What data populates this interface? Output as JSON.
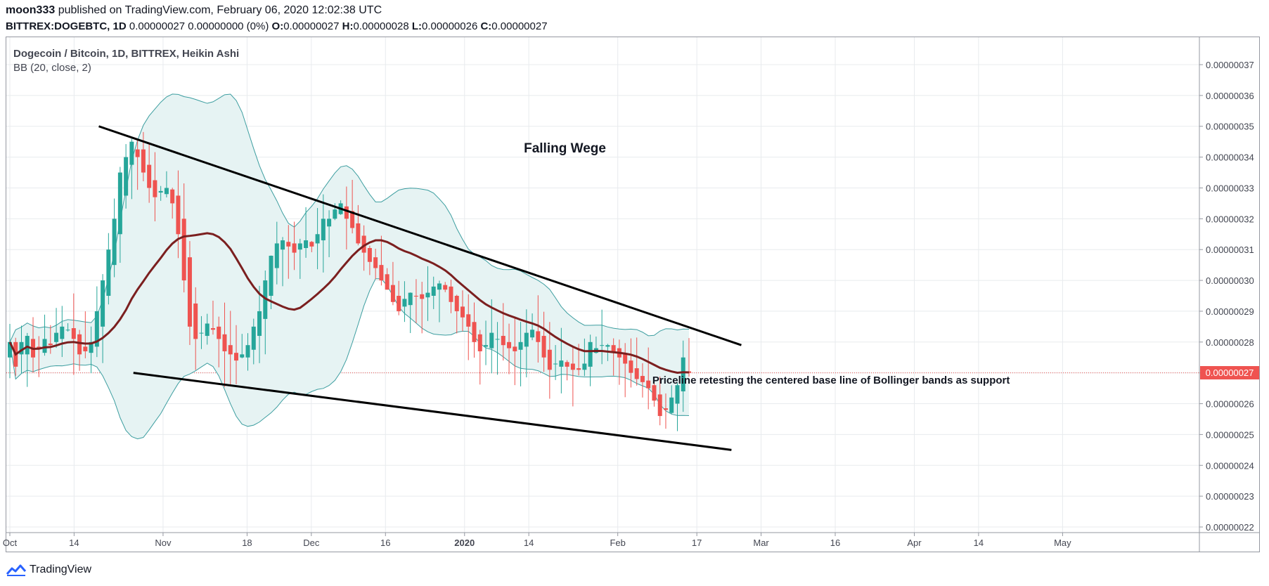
{
  "header": {
    "author": "moon333",
    "published_text": " published on TradingView.com, February 06, 2020 12:02:38 UTC",
    "symbol": "BITTREX:DOGEBTC, 1D",
    "quote": " 0.00000027 0.00000000 (0%) ",
    "o_label": "O:",
    "o_value": "0.00000027",
    "h_label": "H:",
    "h_value": "0.00000028",
    "l_label": "L:",
    "l_value": "0.00000026",
    "c_label": "C:",
    "c_value": "0.00000027"
  },
  "legend": {
    "title": "Dogecoin / Bitcoin, 1D, BITTREX, Heikin Ashi",
    "indicator": "BB (20, close, 2)"
  },
  "last_price_tag": "0.00000027",
  "footer": {
    "brand": "TradingView"
  },
  "colors": {
    "up": "#26a69a",
    "down": "#ef5350",
    "basis": "#7b1f1f",
    "band": "#3d9ea0",
    "band_fill": "#e6f3f3",
    "trendline": "#000000",
    "grid": "#e8ebee"
  },
  "chart_data": {
    "type": "candlestick",
    "ylim": [
      2.2e-07,
      3.7e-07
    ],
    "y_ticks": [
      "0.00000037",
      "0.00000036",
      "0.00000035",
      "0.00000034",
      "0.00000033",
      "0.00000032",
      "0.00000031",
      "0.00000030",
      "0.00000029",
      "0.00000028",
      "0.00000027",
      "0.00000026",
      "0.00000025",
      "0.00000024",
      "0.00000023",
      "0.00000022"
    ],
    "x_ticks": [
      {
        "label": "Oct",
        "date": "2019-10-01",
        "bold": false
      },
      {
        "label": "14",
        "date": "2019-10-14",
        "bold": false
      },
      {
        "label": "Nov",
        "date": "2019-11-01",
        "bold": false
      },
      {
        "label": "18",
        "date": "2019-11-18",
        "bold": false
      },
      {
        "label": "Dec",
        "date": "2019-12-01",
        "bold": false
      },
      {
        "label": "16",
        "date": "2019-12-16",
        "bold": false
      },
      {
        "label": "2020",
        "date": "2020-01-01",
        "bold": true
      },
      {
        "label": "14",
        "date": "2020-01-14",
        "bold": false
      },
      {
        "label": "Feb",
        "date": "2020-02-01",
        "bold": false
      },
      {
        "label": "17",
        "date": "2020-02-17",
        "bold": false
      },
      {
        "label": "Mar",
        "date": "2020-03-01",
        "bold": false
      },
      {
        "label": "16",
        "date": "2020-03-16",
        "bold": false
      },
      {
        "label": "Apr",
        "date": "2020-04-01",
        "bold": false
      },
      {
        "label": "14",
        "date": "2020-04-14",
        "bold": false
      },
      {
        "label": "May",
        "date": "2020-05-01",
        "bold": false
      }
    ],
    "annotations": [
      {
        "text": "Falling Wege",
        "date": "2020-01-13",
        "price": 3.415e-07,
        "bold": true,
        "size": 19
      },
      {
        "text": "Priceline retesting the centered base line of Bollinger bands as support",
        "date": "2020-02-08",
        "price": 2.665e-07,
        "bold": true,
        "size": 15
      }
    ],
    "trendlines": [
      {
        "name": "resistance",
        "from": {
          "date": "2019-10-19",
          "price": 3.5e-07
        },
        "to": {
          "date": "2020-02-26",
          "price": 2.79e-07
        }
      },
      {
        "name": "support",
        "from": {
          "date": "2019-10-26",
          "price": 2.7e-07
        },
        "to": {
          "date": "2020-02-24",
          "price": 2.45e-07
        }
      }
    ],
    "last_price": 2.7e-07,
    "candles_close": [
      2.8e-07,
      2.72e-07,
      2.8e-07,
      2.82e-07,
      2.75e-07,
      2.78e-07,
      2.81e-07,
      2.79e-07,
      2.83e-07,
      2.85e-07,
      2.84e-07,
      2.81e-07,
      2.76e-07,
      2.77e-07,
      2.8e-07,
      2.9e-07,
      3e-07,
      3.1e-07,
      3.2e-07,
      3.35e-07,
      3.4e-07,
      3.45e-07,
      3.4e-07,
      3.35e-07,
      3.3e-07,
      3.27e-07,
      3.29e-07,
      3.3e-07,
      3.25e-07,
      3.15e-07,
      3e-07,
      2.85e-07,
      2.81e-07,
      2.83e-07,
      2.86e-07,
      2.84e-07,
      2.81e-07,
      2.77e-07,
      2.76e-07,
      2.74e-07,
      2.76e-07,
      2.79e-07,
      2.85e-07,
      2.9e-07,
      3e-07,
      3.08e-07,
      3.12e-07,
      3.13e-07,
      3.11e-07,
      3.09e-07,
      3.12e-07,
      3.13e-07,
      3.11e-07,
      3.15e-07,
      3.2e-07,
      3.2e-07,
      3.23e-07,
      3.25e-07,
      3.2e-07,
      3.17e-07,
      3.12e-07,
      3.09e-07,
      3.06e-07,
      3.04e-07,
      3e-07,
      2.97e-07,
      2.93e-07,
      2.9e-07,
      2.94e-07,
      2.96e-07,
      2.95e-07,
      2.94e-07,
      2.96e-07,
      2.98e-07,
      2.99e-07,
      2.97e-07,
      2.93e-07,
      2.9e-07,
      2.88e-07,
      2.85e-07,
      2.8e-07,
      2.77e-07,
      2.79e-07,
      2.83e-07,
      2.81e-07,
      2.79e-07,
      2.78e-07,
      2.77e-07,
      2.8e-07,
      2.83e-07,
      2.84e-07,
      2.8e-07,
      2.75e-07,
      2.71e-07,
      2.73e-07,
      2.74e-07,
      2.72e-07,
      2.71e-07,
      2.71e-07,
      2.73e-07,
      2.8e-07,
      2.78e-07,
      2.79e-07,
      2.79e-07,
      2.77e-07,
      2.75e-07,
      2.73e-07,
      2.7e-07,
      2.68e-07,
      2.67e-07,
      2.65e-07,
      2.61e-07,
      2.56e-07,
      2.58e-07,
      2.62e-07,
      2.66e-07,
      2.75e-07,
      2.7e-07
    ]
  }
}
